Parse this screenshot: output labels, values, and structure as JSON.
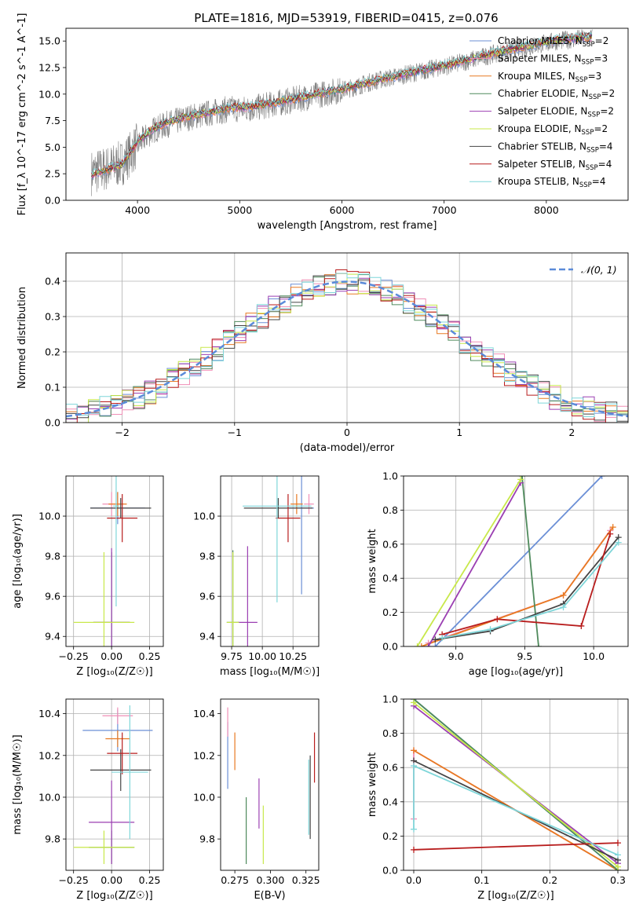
{
  "figure": {
    "title": "PLATE=1816, MJD=53919, FIBERID=0415, z=0.076"
  },
  "models": [
    {
      "name": "Chabrier MILES",
      "nssp": "2",
      "color": "#6b8fd6"
    },
    {
      "name": "Salpeter MILES",
      "nssp": "3",
      "color": "#f08fb6"
    },
    {
      "name": "Kroupa MILES",
      "nssp": "3",
      "color": "#e87a22"
    },
    {
      "name": "Chabrier ELODIE",
      "nssp": "2",
      "color": "#4f8a5c"
    },
    {
      "name": "Salpeter ELODIE",
      "nssp": "2",
      "color": "#9b3fb2"
    },
    {
      "name": "Kroupa ELODIE",
      "nssp": "2",
      "color": "#c8e84a"
    },
    {
      "name": "Chabrier STELIB",
      "nssp": "4",
      "color": "#444444"
    },
    {
      "name": "Salpeter STELIB",
      "nssp": "4",
      "color": "#b81d1d"
    },
    {
      "name": "Kroupa STELIB",
      "nssp": "4",
      "color": "#7fd6d9"
    }
  ],
  "chart_data": [
    {
      "id": "spectrum",
      "type": "line",
      "xlabel": "wavelength [Angstrom, rest frame]",
      "ylabel": "Flux [f_λ 10^-17 erg cm^-2 s^-1 A^-1]",
      "xlim": [
        3300,
        8800
      ],
      "ylim": [
        0,
        16.2
      ],
      "xticks": [
        4000,
        5000,
        6000,
        7000,
        8000
      ],
      "yticks": [
        0.0,
        2.5,
        5.0,
        7.5,
        10.0,
        12.5,
        15.0
      ],
      "grid": false,
      "legend": "right",
      "data_series": {
        "name": "data",
        "color": "#7f7f7f",
        "x": [
          3550,
          3700,
          3850,
          4000,
          4150,
          4300,
          4500,
          4700,
          4900,
          5100,
          5300,
          5500,
          5700,
          5900,
          6100,
          6300,
          6500,
          6700,
          6900,
          7100,
          7300,
          7500,
          7700,
          7900,
          8100,
          8300,
          8450
        ],
        "y": [
          2.6,
          3.0,
          3.5,
          5.2,
          6.6,
          7.2,
          7.8,
          8.2,
          8.6,
          8.6,
          9.0,
          9.4,
          9.8,
          10.2,
          10.6,
          11.2,
          11.6,
          12.0,
          12.4,
          12.8,
          13.3,
          13.8,
          14.2,
          14.6,
          15.0,
          15.2,
          15.3
        ]
      },
      "model_series": {
        "x": [
          3550,
          3700,
          3850,
          4000,
          4150,
          4300,
          4500,
          4700,
          4900,
          5100,
          5300,
          5500,
          5700,
          5900,
          6100,
          6300,
          6500,
          6700,
          6900,
          7100,
          7300,
          7500,
          7700,
          7900,
          8100,
          8300,
          8450
        ],
        "y": [
          2.4,
          2.9,
          3.4,
          5.5,
          6.7,
          7.4,
          7.9,
          8.3,
          8.7,
          8.8,
          9.1,
          9.5,
          9.9,
          10.3,
          10.7,
          11.2,
          11.6,
          12.1,
          12.5,
          12.9,
          13.4,
          13.9,
          14.3,
          14.7,
          15.1,
          15.3,
          15.4
        ]
      }
    },
    {
      "id": "residuals",
      "type": "line",
      "xlabel": "(data-model)/error",
      "ylabel": "Normed distribution",
      "xlim": [
        -2.5,
        2.5
      ],
      "ylim": [
        0,
        0.48
      ],
      "xticks": [
        -2,
        -1,
        0,
        1,
        2
      ],
      "yticks": [
        0.0,
        0.1,
        0.2,
        0.3,
        0.4
      ],
      "grid": true,
      "legend": "top-right",
      "gaussian_label": "𝒩(0, 1)",
      "gaussian_color": "#5b8bd9",
      "bin_width": 0.1
    },
    {
      "id": "Z-age",
      "type": "scatter",
      "xlabel": "Z [log₁₀(Z/Z☉)]",
      "ylabel": "age  [log₁₀(age/yr)]",
      "xlim": [
        -0.3,
        0.34
      ],
      "ylim": [
        9.35,
        10.2
      ],
      "xticks": [
        -0.25,
        0.0,
        0.25
      ],
      "yticks": [
        9.4,
        9.6,
        9.8,
        10.0
      ],
      "grid": true,
      "points": [
        {
          "x": 0.04,
          "y": 10.04,
          "xerr": 0.18,
          "yerr": 0.08,
          "c": 0
        },
        {
          "x": 0.0,
          "y": 10.06,
          "xerr": 0.06,
          "yerr": 0.06,
          "c": 1
        },
        {
          "x": 0.04,
          "y": 10.06,
          "xerr": 0.06,
          "yerr": 0.06,
          "c": 2
        },
        {
          "x": 0.0,
          "y": 9.47,
          "xerr": 0.12,
          "yerr": 0.35,
          "c": 3
        },
        {
          "x": 0.0,
          "y": 9.47,
          "xerr": 0.12,
          "yerr": 0.37,
          "c": 4
        },
        {
          "x": -0.05,
          "y": 9.47,
          "xerr": 0.2,
          "yerr": 0.35,
          "c": 5
        },
        {
          "x": 0.06,
          "y": 10.04,
          "xerr": 0.2,
          "yerr": 0.05,
          "c": 6
        },
        {
          "x": 0.07,
          "y": 9.99,
          "xerr": 0.1,
          "yerr": 0.12,
          "c": 7
        },
        {
          "x": 0.03,
          "y": 10.05,
          "xerr": 0.02,
          "yerr": 0.5,
          "c": 8
        }
      ]
    },
    {
      "id": "mass-age",
      "type": "scatter",
      "xlabel": "mass [log₁₀(M/M☉)]",
      "ylabel": "",
      "xlim": [
        9.66,
        10.46
      ],
      "ylim": [
        9.35,
        10.2
      ],
      "xticks": [
        9.75,
        10.0,
        10.25
      ],
      "yticks": [
        9.4,
        9.6,
        9.8,
        10.0
      ],
      "grid": true,
      "points": [
        {
          "x": 10.32,
          "y": 10.04,
          "xerr": 0.1,
          "yerr": 0.43,
          "c": 0
        },
        {
          "x": 10.38,
          "y": 10.06,
          "xerr": 0.04,
          "yerr": 0.05,
          "c": 1
        },
        {
          "x": 10.28,
          "y": 10.06,
          "xerr": 0.05,
          "yerr": 0.05,
          "c": 2
        },
        {
          "x": 9.76,
          "y": 9.47,
          "xerr": 0.05,
          "yerr": 0.36,
          "c": 3
        },
        {
          "x": 9.88,
          "y": 9.47,
          "xerr": 0.08,
          "yerr": 0.38,
          "c": 4
        },
        {
          "x": 9.76,
          "y": 9.47,
          "xerr": 0.05,
          "yerr": 0.35,
          "c": 5
        },
        {
          "x": 10.13,
          "y": 10.04,
          "xerr": 0.28,
          "yerr": 0.05,
          "c": 6
        },
        {
          "x": 10.21,
          "y": 9.99,
          "xerr": 0.1,
          "yerr": 0.12,
          "c": 7
        },
        {
          "x": 10.12,
          "y": 10.05,
          "xerr": 0.28,
          "yerr": 0.48,
          "c": 8
        }
      ]
    },
    {
      "id": "age-weight",
      "type": "line",
      "xlabel": "age  [log₁₀(age/yr)]",
      "ylabel": "mass weight",
      "xlim": [
        8.62,
        10.25
      ],
      "ylim": [
        0,
        1
      ],
      "xticks": [
        9.0,
        9.5,
        10.0
      ],
      "yticks": [
        0.0,
        0.2,
        0.4,
        0.6,
        0.8,
        1.0
      ],
      "grid": true,
      "series": [
        {
          "c": 0,
          "x": [
            8.85,
            10.06
          ],
          "y": [
            0.0,
            1.0
          ]
        },
        {
          "c": 1,
          "x": [
            8.8,
            9.78,
            10.12
          ],
          "y": [
            0.02,
            0.3,
            0.68
          ]
        },
        {
          "c": 2,
          "x": [
            8.75,
            9.78,
            10.14
          ],
          "y": [
            0.0,
            0.3,
            0.7
          ]
        },
        {
          "c": 3,
          "x": [
            9.48,
            9.6
          ],
          "y": [
            1.0,
            0.0
          ]
        },
        {
          "c": 4,
          "x": [
            8.8,
            9.47
          ],
          "y": [
            0.0,
            0.96
          ]
        },
        {
          "c": 5,
          "x": [
            8.72,
            9.47
          ],
          "y": [
            0.0,
            0.98
          ]
        },
        {
          "c": 6,
          "x": [
            8.85,
            9.25,
            9.78,
            10.18
          ],
          "y": [
            0.04,
            0.09,
            0.25,
            0.64
          ]
        },
        {
          "c": 7,
          "x": [
            8.9,
            9.3,
            9.91,
            10.12
          ],
          "y": [
            0.07,
            0.16,
            0.12,
            0.66
          ]
        },
        {
          "c": 8,
          "x": [
            8.9,
            9.25,
            9.78,
            10.18
          ],
          "y": [
            0.05,
            0.1,
            0.23,
            0.61
          ]
        }
      ]
    },
    {
      "id": "Z-mass",
      "type": "scatter",
      "xlabel": "Z [log₁₀(Z/Z☉)]",
      "ylabel": "mass [log₁₀(M/M☉)]",
      "xlim": [
        -0.3,
        0.34
      ],
      "ylim": [
        9.65,
        10.47
      ],
      "xticks": [
        -0.25,
        0.0,
        0.25
      ],
      "yticks": [
        9.8,
        10.0,
        10.2,
        10.4
      ],
      "grid": true,
      "points": [
        {
          "x": 0.04,
          "y": 10.32,
          "xerr": 0.23,
          "yerr": 0.1,
          "c": 0
        },
        {
          "x": 0.04,
          "y": 10.39,
          "xerr": 0.1,
          "yerr": 0.04,
          "c": 1
        },
        {
          "x": 0.04,
          "y": 10.28,
          "xerr": 0.08,
          "yerr": 0.04,
          "c": 2
        },
        {
          "x": 0.0,
          "y": 9.76,
          "xerr": 0.15,
          "yerr": 0.08,
          "c": 3
        },
        {
          "x": 0.0,
          "y": 9.88,
          "xerr": 0.15,
          "yerr": 0.2,
          "c": 4
        },
        {
          "x": -0.05,
          "y": 9.76,
          "xerr": 0.2,
          "yerr": 0.08,
          "c": 5
        },
        {
          "x": 0.06,
          "y": 10.13,
          "xerr": 0.2,
          "yerr": 0.1,
          "c": 6
        },
        {
          "x": 0.07,
          "y": 10.21,
          "xerr": 0.1,
          "yerr": 0.1,
          "c": 7
        },
        {
          "x": 0.12,
          "y": 10.12,
          "xerr": 0.12,
          "yerr": 0.32,
          "c": 8
        }
      ]
    },
    {
      "id": "ebv-mass",
      "type": "scatter",
      "xlabel": "E(B-V)",
      "ylabel": "",
      "xlim": [
        0.265,
        0.334
      ],
      "ylim": [
        9.65,
        10.47
      ],
      "xticks": [
        0.275,
        0.3,
        0.325
      ],
      "yticks": [
        9.8,
        10.0,
        10.2,
        10.4
      ],
      "grid": false,
      "points": [
        {
          "x": 0.27,
          "y": 10.2,
          "xerr": 0,
          "yerr": 0.16,
          "c": 0
        },
        {
          "x": 0.27,
          "y": 10.36,
          "xerr": 0,
          "yerr": 0.07,
          "c": 1
        },
        {
          "x": 0.275,
          "y": 10.22,
          "xerr": 0,
          "yerr": 0.09,
          "c": 2
        },
        {
          "x": 0.283,
          "y": 9.84,
          "xerr": 0,
          "yerr": 0.16,
          "c": 3
        },
        {
          "x": 0.292,
          "y": 9.97,
          "xerr": 0,
          "yerr": 0.12,
          "c": 4
        },
        {
          "x": 0.295,
          "y": 9.82,
          "xerr": 0,
          "yerr": 0.14,
          "c": 5
        },
        {
          "x": 0.328,
          "y": 10.0,
          "xerr": 0,
          "yerr": 0.2,
          "c": 6
        },
        {
          "x": 0.331,
          "y": 10.19,
          "xerr": 0,
          "yerr": 0.12,
          "c": 7
        },
        {
          "x": 0.327,
          "y": 10.0,
          "xerr": 0,
          "yerr": 0.18,
          "c": 8
        }
      ]
    },
    {
      "id": "Z-weight",
      "type": "line",
      "xlabel": "Z [log₁₀(Z/Z☉)]",
      "ylabel": "mass weight",
      "xlim": [
        -0.015,
        0.315
      ],
      "ylim": [
        0,
        1
      ],
      "xticks": [
        0.0,
        0.1,
        0.2,
        0.3
      ],
      "yticks": [
        0.0,
        0.2,
        0.4,
        0.6,
        0.8,
        1.0
      ],
      "grid": true,
      "series": [
        {
          "c": 0,
          "x": [
            0.0,
            0.3
          ],
          "y": [
            1.0,
            0.0
          ]
        },
        {
          "c": 1,
          "x": [
            0.0,
            0.0,
            0.3
          ],
          "y": [
            0.3,
            0.7,
            0.0
          ]
        },
        {
          "c": 2,
          "x": [
            0.0,
            0.3
          ],
          "y": [
            0.7,
            0.0
          ]
        },
        {
          "c": 3,
          "x": [
            0.0,
            0.3
          ],
          "y": [
            1.0,
            0.0
          ]
        },
        {
          "c": 4,
          "x": [
            0.0,
            0.3
          ],
          "y": [
            0.96,
            0.04
          ]
        },
        {
          "c": 5,
          "x": [
            0.0,
            0.3
          ],
          "y": [
            0.98,
            0.02
          ]
        },
        {
          "c": 6,
          "x": [
            0.0,
            0.3
          ],
          "y": [
            0.64,
            0.06
          ]
        },
        {
          "c": 7,
          "x": [
            0.0,
            0.3
          ],
          "y": [
            0.12,
            0.16
          ]
        },
        {
          "c": 8,
          "x": [
            0.0,
            0.0,
            0.3
          ],
          "y": [
            0.24,
            0.61,
            0.09
          ]
        }
      ]
    }
  ]
}
